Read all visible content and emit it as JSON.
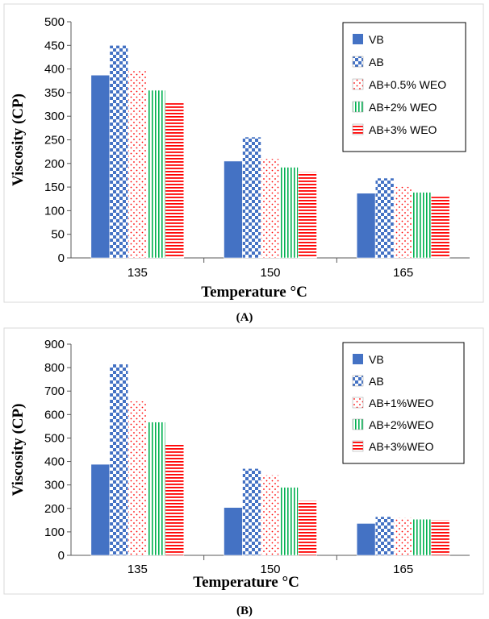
{
  "chart_data": [
    {
      "panel_label": "(A)",
      "type": "bar",
      "title": "",
      "xlabel": "Temperature °C",
      "ylabel": "Viscosity (CP)",
      "ylim": [
        0,
        500
      ],
      "yticks": [
        "0",
        "50",
        "100",
        "150",
        "200",
        "250",
        "300",
        "350",
        "400",
        "450",
        "500"
      ],
      "categories": [
        "135",
        "150",
        "165"
      ],
      "legend_position": "top-right",
      "grid": false,
      "series": [
        {
          "name": "VB",
          "values": [
            387,
            205,
            137
          ]
        },
        {
          "name": "AB",
          "values": [
            450,
            256,
            169
          ]
        },
        {
          "name": "AB+0.5% WEO",
          "values": [
            396,
            210,
            151
          ]
        },
        {
          "name": "AB+2% WEO",
          "values": [
            355,
            192,
            139
          ]
        },
        {
          "name": "AB+3% WEO",
          "values": [
            328,
            182,
            130
          ]
        }
      ]
    },
    {
      "panel_label": "(B)",
      "type": "bar",
      "title": "",
      "xlabel": "Temperature °C",
      "ylabel": "Viscosity (CP)",
      "ylim": [
        0,
        900
      ],
      "yticks": [
        "0",
        "100",
        "200",
        "300",
        "400",
        "500",
        "600",
        "700",
        "800",
        "900"
      ],
      "categories": [
        "135",
        "150",
        "165"
      ],
      "legend_position": "top-right",
      "grid": false,
      "series": [
        {
          "name": "VB",
          "values": [
            388,
            204,
            136
          ]
        },
        {
          "name": "AB",
          "values": [
            815,
            370,
            165
          ]
        },
        {
          "name": "AB+1%WEO",
          "values": [
            657,
            342,
            160
          ]
        },
        {
          "name": "AB+2%WEO",
          "values": [
            568,
            290,
            154
          ]
        },
        {
          "name": "AB+3%WEO",
          "values": [
            474,
            233,
            150
          ]
        }
      ]
    }
  ],
  "style": {
    "series_colors": [
      "#4472c4",
      "#4472c4",
      "#ff0000",
      "#00b050",
      "#ff0000"
    ],
    "series_patterns": [
      "solid",
      "checker",
      "dots",
      "vlines",
      "hlines"
    ],
    "frame_color": "#d9d9d9",
    "axis_color": "#595959"
  }
}
